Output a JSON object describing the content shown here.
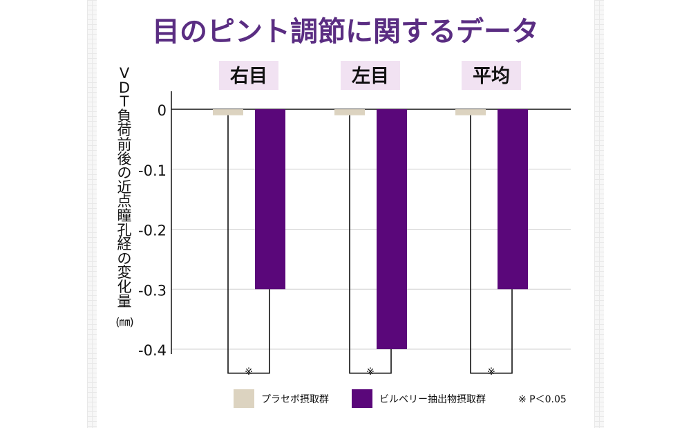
{
  "chart_data": {
    "type": "bar",
    "title": "目のピント調節に関するデータ",
    "ylabel": "VDT負荷前後の近点瞳孔経の変化量",
    "yunit": "(㎜)",
    "categories": [
      "右目",
      "左目",
      "平均"
    ],
    "series": [
      {
        "name": "プラセボ摂取群",
        "color": "#dcd3c0",
        "values": [
          -0.01,
          -0.01,
          -0.01
        ],
        "error": [
          0.43,
          0.43,
          0.43
        ]
      },
      {
        "name": "ビルベリー抽出物摂取群",
        "color": "#5a077a",
        "values": [
          -0.3,
          -0.4,
          -0.3
        ],
        "error": [
          0,
          0,
          0
        ]
      }
    ],
    "yticks": [
      "0",
      "-0.1",
      "-0.2",
      "-0.3",
      "-0.4"
    ],
    "ylim": [
      -0.4,
      0
    ],
    "significance_marks": [
      "※",
      "※",
      "※"
    ],
    "note": "※ P＜0.05",
    "colors": {
      "title": "#5a2d82",
      "category_bg": "#f1e2f2",
      "gridline": "#cfcfcf"
    }
  }
}
